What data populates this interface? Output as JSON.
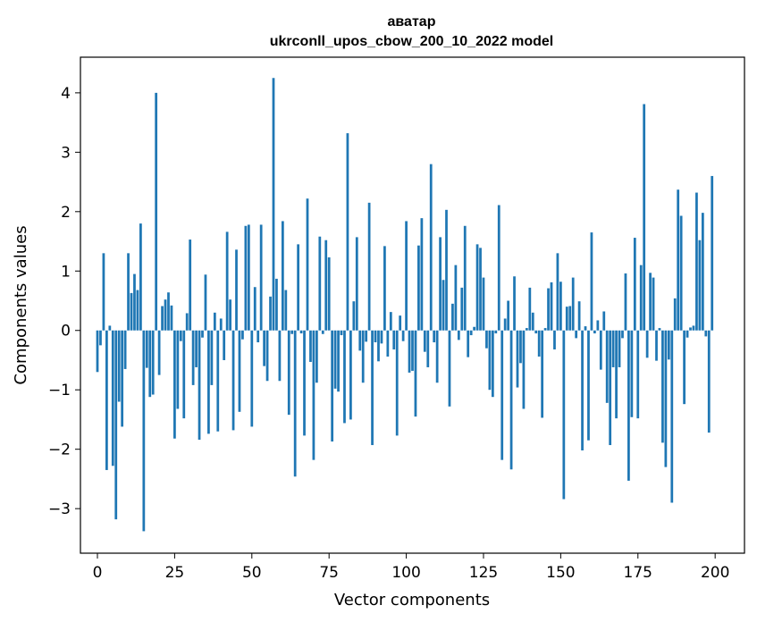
{
  "chart_data": {
    "type": "bar",
    "title": "аватар",
    "subtitle": "ukrconll_upos_cbow_200_10_2022 model",
    "xlabel": "Vector components",
    "ylabel": "Components values",
    "xlim": [
      -5.5,
      209.5
    ],
    "ylim": [
      -3.75,
      4.6
    ],
    "xticks": [
      0,
      25,
      50,
      75,
      100,
      125,
      150,
      175,
      200
    ],
    "xtick_labels": [
      "0",
      "25",
      "50",
      "75",
      "100",
      "125",
      "150",
      "175",
      "200"
    ],
    "yticks": [
      -3,
      -2,
      -1,
      0,
      1,
      2,
      3,
      4
    ],
    "ytick_labels": [
      "−3",
      "−2",
      "−1",
      "0",
      "1",
      "2",
      "3",
      "4"
    ],
    "grid": false,
    "legend": "none",
    "bar_color": "#1f77b4",
    "values": [
      -0.7,
      -0.25,
      1.3,
      -2.35,
      0.08,
      -2.28,
      -3.18,
      -1.2,
      -1.62,
      -0.65,
      1.3,
      0.63,
      0.95,
      0.68,
      1.8,
      -3.38,
      -0.63,
      -1.12,
      -1.08,
      4.0,
      -0.75,
      0.41,
      0.52,
      0.64,
      0.42,
      -1.82,
      -1.32,
      -0.18,
      -1.48,
      0.29,
      1.53,
      -0.92,
      -0.62,
      -1.84,
      -0.12,
      0.94,
      -1.74,
      -0.92,
      0.3,
      -1.7,
      0.2,
      -0.5,
      1.66,
      0.52,
      -1.68,
      1.36,
      -1.37,
      -0.15,
      1.76,
      1.78,
      -1.62,
      0.73,
      -0.2,
      1.78,
      -0.6,
      -0.85,
      0.57,
      4.25,
      0.87,
      -0.85,
      1.84,
      0.68,
      -1.42,
      -0.06,
      -2.46,
      1.45,
      -0.05,
      -1.77,
      2.22,
      -0.53,
      -2.18,
      -0.88,
      1.58,
      -0.06,
      1.52,
      1.23,
      -1.87,
      -0.98,
      -1.03,
      -0.08,
      -1.56,
      3.32,
      -1.5,
      0.49,
      1.57,
      -0.34,
      -0.88,
      -0.19,
      2.15,
      -1.93,
      -0.2,
      -0.52,
      -0.22,
      1.42,
      -0.44,
      0.31,
      -0.32,
      -1.77,
      0.25,
      -0.18,
      1.84,
      -0.71,
      -0.68,
      -1.45,
      1.43,
      1.89,
      -0.36,
      -0.62,
      2.8,
      -0.2,
      -0.88,
      1.57,
      0.85,
      2.03,
      -1.28,
      0.45,
      1.1,
      -0.16,
      0.72,
      1.76,
      -0.45,
      -0.08,
      0.06,
      1.45,
      1.39,
      0.89,
      -0.3,
      -1.0,
      -1.12,
      -0.05,
      2.11,
      -2.18,
      0.2,
      0.5,
      -2.34,
      0.91,
      -0.96,
      -0.55,
      -1.32,
      0.04,
      0.72,
      0.3,
      -0.05,
      -0.44,
      -1.47,
      0.04,
      0.71,
      0.81,
      -0.32,
      1.3,
      0.82,
      -2.84,
      0.4,
      0.41,
      0.89,
      -0.13,
      0.49,
      -2.02,
      0.07,
      -1.85,
      1.65,
      -0.05,
      0.17,
      -0.66,
      0.32,
      -1.22,
      -1.93,
      -0.62,
      -1.48,
      -0.62,
      -0.13,
      0.96,
      -2.53,
      -1.46,
      1.56,
      -1.48,
      1.1,
      3.81,
      -0.46,
      0.97,
      0.89,
      -0.51,
      0.04,
      -1.89,
      -2.3,
      -0.49,
      -2.9,
      0.54,
      2.37,
      1.93,
      -1.24,
      -0.12,
      0.05,
      0.08,
      2.32,
      1.52,
      1.98,
      -0.1,
      -1.72,
      2.6
    ]
  }
}
